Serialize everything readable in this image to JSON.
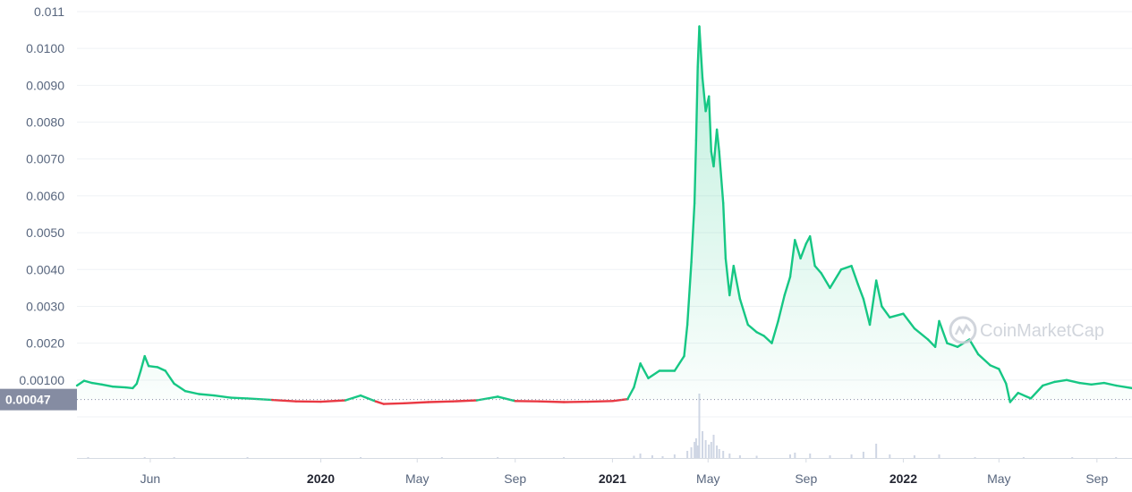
{
  "chart_data": {
    "type": "area",
    "title": "",
    "xlabel": "",
    "ylabel": "",
    "ylim": [
      0,
      0.011
    ],
    "y_ticks": [
      "0.00100",
      "0.0020",
      "0.0030",
      "0.0040",
      "0.0050",
      "0.0060",
      "0.0070",
      "0.0080",
      "0.0090",
      "0.0100",
      "0.011"
    ],
    "y_tick_values": [
      0.001,
      0.002,
      0.003,
      0.004,
      0.005,
      0.006,
      0.007,
      0.008,
      0.009,
      0.01,
      0.011
    ],
    "xlim": [
      "2019-03-01",
      "2022-10-15"
    ],
    "x_ticks": [
      {
        "label": "Jun",
        "date": "2019-06-01",
        "bold": false
      },
      {
        "label": "2020",
        "date": "2020-01-01",
        "bold": true
      },
      {
        "label": "May",
        "date": "2020-05-01",
        "bold": false
      },
      {
        "label": "Sep",
        "date": "2020-09-01",
        "bold": false
      },
      {
        "label": "2021",
        "date": "2021-01-01",
        "bold": true
      },
      {
        "label": "May",
        "date": "2021-05-01",
        "bold": false
      },
      {
        "label": "Sep",
        "date": "2021-09-01",
        "bold": false
      },
      {
        "label": "2022",
        "date": "2022-01-01",
        "bold": true
      },
      {
        "label": "May",
        "date": "2022-05-01",
        "bold": false
      },
      {
        "label": "Sep",
        "date": "2022-09-01",
        "bold": false
      }
    ],
    "baseline_price": 0.00047,
    "baseline_label": "0.00047",
    "colors": {
      "above": "#16c784",
      "below": "#ea3943",
      "area": "#16c784",
      "volume": "#cfd6e4",
      "baseline_tag": "#858ca2"
    },
    "series": [
      {
        "values": [
          [
            "2019-03-01",
            0.00085
          ],
          [
            "2019-03-10",
            0.00098
          ],
          [
            "2019-03-20",
            0.00092
          ],
          [
            "2019-04-01",
            0.00088
          ],
          [
            "2019-04-15",
            0.00082
          ],
          [
            "2019-05-01",
            0.0008
          ],
          [
            "2019-05-10",
            0.00078
          ],
          [
            "2019-05-15",
            0.0009
          ],
          [
            "2019-05-20",
            0.00125
          ],
          [
            "2019-05-25",
            0.00165
          ],
          [
            "2019-05-30",
            0.00138
          ],
          [
            "2019-06-10",
            0.00135
          ],
          [
            "2019-06-20",
            0.00125
          ],
          [
            "2019-07-01",
            0.0009
          ],
          [
            "2019-07-15",
            0.0007
          ],
          [
            "2019-08-01",
            0.00062
          ],
          [
            "2019-08-20",
            0.00058
          ],
          [
            "2019-09-10",
            0.00052
          ],
          [
            "2019-10-01",
            0.0005
          ],
          [
            "2019-11-01",
            0.00046
          ],
          [
            "2019-12-01",
            0.00042
          ],
          [
            "2020-01-01",
            0.00041
          ],
          [
            "2020-02-01",
            0.00045
          ],
          [
            "2020-02-20",
            0.00058
          ],
          [
            "2020-03-10",
            0.00042
          ],
          [
            "2020-03-20",
            0.00035
          ],
          [
            "2020-04-15",
            0.00037
          ],
          [
            "2020-05-15",
            0.0004
          ],
          [
            "2020-06-15",
            0.00042
          ],
          [
            "2020-07-15",
            0.00045
          ],
          [
            "2020-08-10",
            0.00055
          ],
          [
            "2020-09-01",
            0.00043
          ],
          [
            "2020-10-01",
            0.00042
          ],
          [
            "2020-11-01",
            0.0004
          ],
          [
            "2020-12-01",
            0.00041
          ],
          [
            "2021-01-01",
            0.00043
          ],
          [
            "2021-01-20",
            0.00048
          ],
          [
            "2021-01-28",
            0.0008
          ],
          [
            "2021-02-05",
            0.00145
          ],
          [
            "2021-02-15",
            0.00105
          ],
          [
            "2021-03-01",
            0.00125
          ],
          [
            "2021-03-20",
            0.00125
          ],
          [
            "2021-04-01",
            0.00165
          ],
          [
            "2021-04-05",
            0.0025
          ],
          [
            "2021-04-10",
            0.0042
          ],
          [
            "2021-04-14",
            0.0058
          ],
          [
            "2021-04-16",
            0.0075
          ],
          [
            "2021-04-18",
            0.0095
          ],
          [
            "2021-04-20",
            0.0106
          ],
          [
            "2021-04-24",
            0.0092
          ],
          [
            "2021-04-28",
            0.0083
          ],
          [
            "2021-05-02",
            0.0087
          ],
          [
            "2021-05-05",
            0.0072
          ],
          [
            "2021-05-08",
            0.0068
          ],
          [
            "2021-05-12",
            0.0078
          ],
          [
            "2021-05-15",
            0.0072
          ],
          [
            "2021-05-20",
            0.0058
          ],
          [
            "2021-05-23",
            0.0043
          ],
          [
            "2021-05-28",
            0.0033
          ],
          [
            "2021-06-02",
            0.0041
          ],
          [
            "2021-06-10",
            0.0032
          ],
          [
            "2021-06-20",
            0.0025
          ],
          [
            "2021-07-01",
            0.0023
          ],
          [
            "2021-07-10",
            0.0022
          ],
          [
            "2021-07-20",
            0.002
          ],
          [
            "2021-07-28",
            0.0026
          ],
          [
            "2021-08-05",
            0.0033
          ],
          [
            "2021-08-12",
            0.0038
          ],
          [
            "2021-08-18",
            0.0048
          ],
          [
            "2021-08-25",
            0.0043
          ],
          [
            "2021-09-01",
            0.0047
          ],
          [
            "2021-09-06",
            0.0049
          ],
          [
            "2021-09-12",
            0.0041
          ],
          [
            "2021-09-20",
            0.0039
          ],
          [
            "2021-10-01",
            0.0035
          ],
          [
            "2021-10-15",
            0.004
          ],
          [
            "2021-10-28",
            0.0041
          ],
          [
            "2021-11-05",
            0.0036
          ],
          [
            "2021-11-12",
            0.0032
          ],
          [
            "2021-11-20",
            0.0025
          ],
          [
            "2021-11-28",
            0.0037
          ],
          [
            "2021-12-05",
            0.003
          ],
          [
            "2021-12-15",
            0.0027
          ],
          [
            "2022-01-01",
            0.0028
          ],
          [
            "2022-01-15",
            0.0024
          ],
          [
            "2022-02-01",
            0.0021
          ],
          [
            "2022-02-10",
            0.0019
          ],
          [
            "2022-02-15",
            0.0026
          ],
          [
            "2022-02-25",
            0.002
          ],
          [
            "2022-03-10",
            0.0019
          ],
          [
            "2022-03-25",
            0.0021
          ],
          [
            "2022-04-05",
            0.0017
          ],
          [
            "2022-04-20",
            0.0014
          ],
          [
            "2022-05-01",
            0.0013
          ],
          [
            "2022-05-10",
            0.0009
          ],
          [
            "2022-05-15",
            0.0004
          ],
          [
            "2022-05-25",
            0.00065
          ],
          [
            "2022-06-10",
            0.0005
          ],
          [
            "2022-06-25",
            0.00085
          ],
          [
            "2022-07-10",
            0.00095
          ],
          [
            "2022-07-25",
            0.001
          ],
          [
            "2022-08-10",
            0.00092
          ],
          [
            "2022-08-25",
            0.00088
          ],
          [
            "2022-09-10",
            0.00092
          ],
          [
            "2022-09-25",
            0.00085
          ],
          [
            "2022-10-15",
            0.00078
          ]
        ]
      }
    ],
    "volume": [
      [
        "2019-03-15",
        0.4
      ],
      [
        "2019-05-25",
        0.6
      ],
      [
        "2019-07-01",
        0.3
      ],
      [
        "2019-10-01",
        0.2
      ],
      [
        "2020-02-20",
        0.4
      ],
      [
        "2020-06-01",
        0.3
      ],
      [
        "2020-08-10",
        0.5
      ],
      [
        "2020-11-01",
        0.3
      ],
      [
        "2021-01-28",
        2.5
      ],
      [
        "2021-02-05",
        5
      ],
      [
        "2021-02-20",
        3
      ],
      [
        "2021-03-05",
        2
      ],
      [
        "2021-03-20",
        4
      ],
      [
        "2021-04-05",
        8
      ],
      [
        "2021-04-10",
        12
      ],
      [
        "2021-04-14",
        18
      ],
      [
        "2021-04-16",
        22
      ],
      [
        "2021-04-18",
        14
      ],
      [
        "2021-04-20",
        72
      ],
      [
        "2021-04-24",
        30
      ],
      [
        "2021-04-28",
        20
      ],
      [
        "2021-05-02",
        15
      ],
      [
        "2021-05-05",
        18
      ],
      [
        "2021-05-08",
        26
      ],
      [
        "2021-05-12",
        14
      ],
      [
        "2021-05-15",
        10
      ],
      [
        "2021-05-20",
        8
      ],
      [
        "2021-05-28",
        5
      ],
      [
        "2021-06-10",
        3
      ],
      [
        "2021-07-01",
        2.5
      ],
      [
        "2021-08-12",
        4
      ],
      [
        "2021-08-18",
        6
      ],
      [
        "2021-09-06",
        5
      ],
      [
        "2021-10-01",
        3
      ],
      [
        "2021-10-28",
        4
      ],
      [
        "2021-11-12",
        7
      ],
      [
        "2021-11-28",
        16
      ],
      [
        "2021-12-15",
        4
      ],
      [
        "2022-01-15",
        3
      ],
      [
        "2022-02-15",
        4
      ],
      [
        "2022-04-01",
        1
      ],
      [
        "2022-06-01",
        0.5
      ],
      [
        "2022-08-01",
        0.4
      ],
      [
        "2022-09-25",
        0.3
      ]
    ],
    "volume_max": 75,
    "watermark": "CoinMarketCap"
  }
}
